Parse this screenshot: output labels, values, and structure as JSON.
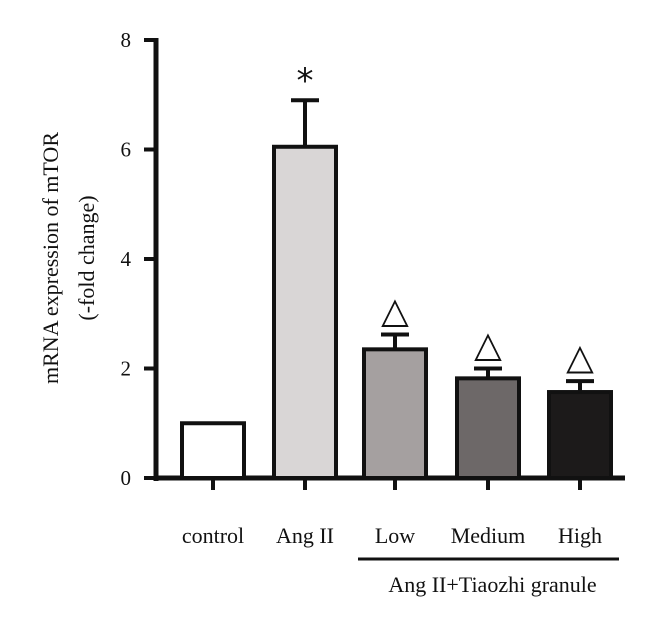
{
  "chart_data": {
    "type": "bar",
    "ylabel_lines": [
      "mRNA expression of mTOR",
      "(-fold change)"
    ],
    "xlabel": "",
    "ylim": [
      0,
      8
    ],
    "yticks": [
      "0",
      "2",
      "4",
      "6",
      "8"
    ],
    "categories": [
      "control",
      "Ang II",
      "Low",
      "Medium",
      "High"
    ],
    "values": [
      1.0,
      6.05,
      2.35,
      1.82,
      1.57
    ],
    "errors": [
      0,
      0.85,
      0.27,
      0.18,
      0.2
    ],
    "bar_colors": [
      "#ffffff",
      "#d9d6d6",
      "#a5a0a0",
      "#6d6868",
      "#1c1a1a"
    ],
    "annotations": [
      "",
      "*",
      "△",
      "△",
      "△"
    ],
    "group_label": "Ang II+Tiaozhi granule",
    "group_span": [
      "Low",
      "High"
    ]
  }
}
